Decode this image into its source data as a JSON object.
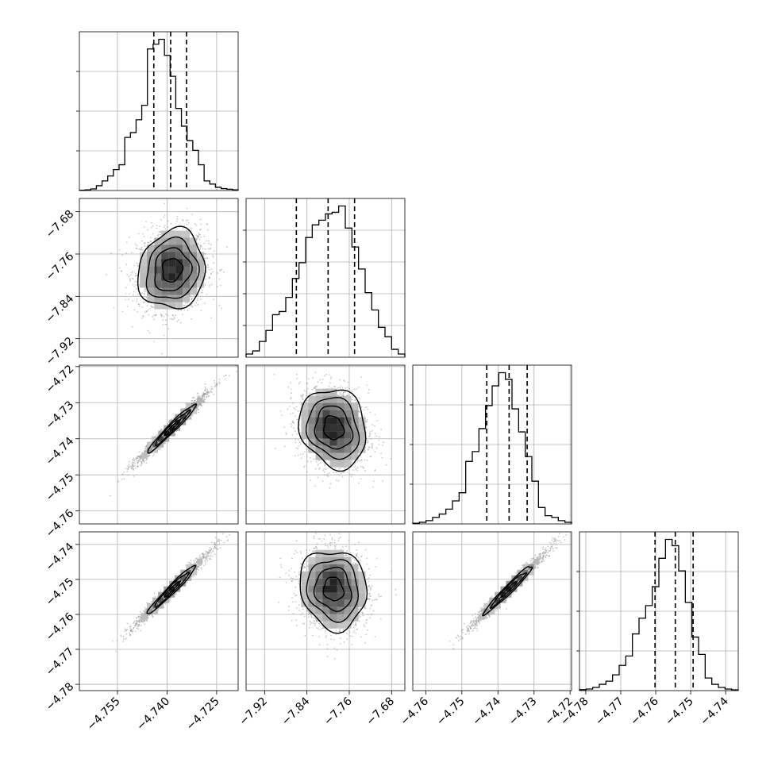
{
  "chart_data": {
    "type": "corner",
    "grid": true,
    "params": [
      {
        "ticks": [
          "−4.755",
          "−4.740",
          "−4.725"
        ],
        "tick_values": [
          -4.755,
          -4.74,
          -4.725
        ],
        "range": [
          -4.7665,
          -4.7185
        ],
        "mean": -4.7385,
        "q": [
          -4.744,
          -4.7389,
          -4.7341
        ],
        "hist": [
          0.002,
          0.004,
          0.01,
          0.03,
          0.06,
          0.09,
          0.13,
          0.16,
          0.33,
          0.36,
          0.44,
          0.53,
          0.88,
          0.91,
          0.94,
          0.84,
          0.71,
          0.51,
          0.4,
          0.31,
          0.25,
          0.16,
          0.06,
          0.04,
          0.02,
          0.012,
          0.008,
          0.004
        ],
        "hist_ticks": [
          0.25,
          0.5,
          0.75
        ]
      },
      {
        "ticks": [
          "−7.92",
          "−7.84",
          "−7.76",
          "−7.68"
        ],
        "tick_values": [
          -7.92,
          -7.84,
          -7.76,
          -7.68
        ],
        "range": [
          -7.955,
          -7.655
        ],
        "mean": -7.79,
        "q": [
          -7.86,
          -7.8,
          -7.75
        ],
        "hist": [
          0.02,
          0.04,
          0.1,
          0.17,
          0.27,
          0.29,
          0.38,
          0.5,
          0.6,
          0.76,
          0.84,
          0.87,
          0.91,
          0.92,
          0.96,
          0.82,
          0.7,
          0.56,
          0.41,
          0.3,
          0.19,
          0.13,
          0.05,
          0.02
        ],
        "hist_ticks": [
          0.2,
          0.4,
          0.6,
          0.8
        ]
      },
      {
        "ticks": [
          "−4.76",
          "−4.75",
          "−4.74",
          "−4.73",
          "−4.72"
        ],
        "tick_values": [
          -4.76,
          -4.75,
          -4.74,
          -4.73,
          -4.72
        ],
        "range": [
          -4.7636,
          -4.7196
        ],
        "mean": -4.737,
        "q": [
          -4.7431,
          -4.7369,
          -4.7319
        ],
        "hist": [
          0.004,
          0.01,
          0.02,
          0.04,
          0.06,
          0.09,
          0.14,
          0.19,
          0.38,
          0.44,
          0.58,
          0.72,
          0.84,
          0.92,
          0.88,
          0.7,
          0.56,
          0.41,
          0.26,
          0.1,
          0.05,
          0.04,
          0.02,
          0.01
        ],
        "hist_ticks": [
          0.25,
          0.5,
          0.75
        ]
      },
      {
        "ticks": [
          "−4.78",
          "−4.77",
          "−4.76",
          "−4.75",
          "−4.74"
        ],
        "tick_values": [
          -4.78,
          -4.77,
          -4.76,
          -4.75,
          -4.74
        ],
        "range": [
          -4.7818,
          -4.7364
        ],
        "mean": -4.7528,
        "q": [
          -4.7602,
          -4.7544,
          -4.7493
        ],
        "hist": [
          0.006,
          0.01,
          0.02,
          0.04,
          0.06,
          0.1,
          0.16,
          0.22,
          0.36,
          0.46,
          0.54,
          0.66,
          0.84,
          0.96,
          0.92,
          0.76,
          0.56,
          0.34,
          0.23,
          0.08,
          0.04,
          0.02,
          0.01,
          0.005
        ],
        "hist_ticks": [
          0.25,
          0.5,
          0.75
        ]
      }
    ],
    "pairs": [
      {
        "row": 1,
        "col": 0,
        "corr": 0.1,
        "density": 1.0,
        "levels": [
          0.85,
          0.58,
          0.34,
          0.16
        ]
      },
      {
        "row": 2,
        "col": 0,
        "corr": 0.985,
        "density": 1.0,
        "levels": [
          0.9,
          0.6,
          0.36
        ]
      },
      {
        "row": 2,
        "col": 1,
        "corr": -0.15,
        "density": 1.0,
        "levels": [
          0.85,
          0.58,
          0.34,
          0.16
        ]
      },
      {
        "row": 3,
        "col": 0,
        "corr": 0.97,
        "density": 1.0,
        "levels": [
          0.9,
          0.6,
          0.36
        ]
      },
      {
        "row": 3,
        "col": 1,
        "corr": -0.1,
        "density": 1.0,
        "levels": [
          0.85,
          0.58,
          0.34,
          0.16
        ]
      },
      {
        "row": 3,
        "col": 2,
        "corr": 0.985,
        "density": 1.0,
        "levels": [
          0.9,
          0.6,
          0.36
        ]
      }
    ]
  }
}
